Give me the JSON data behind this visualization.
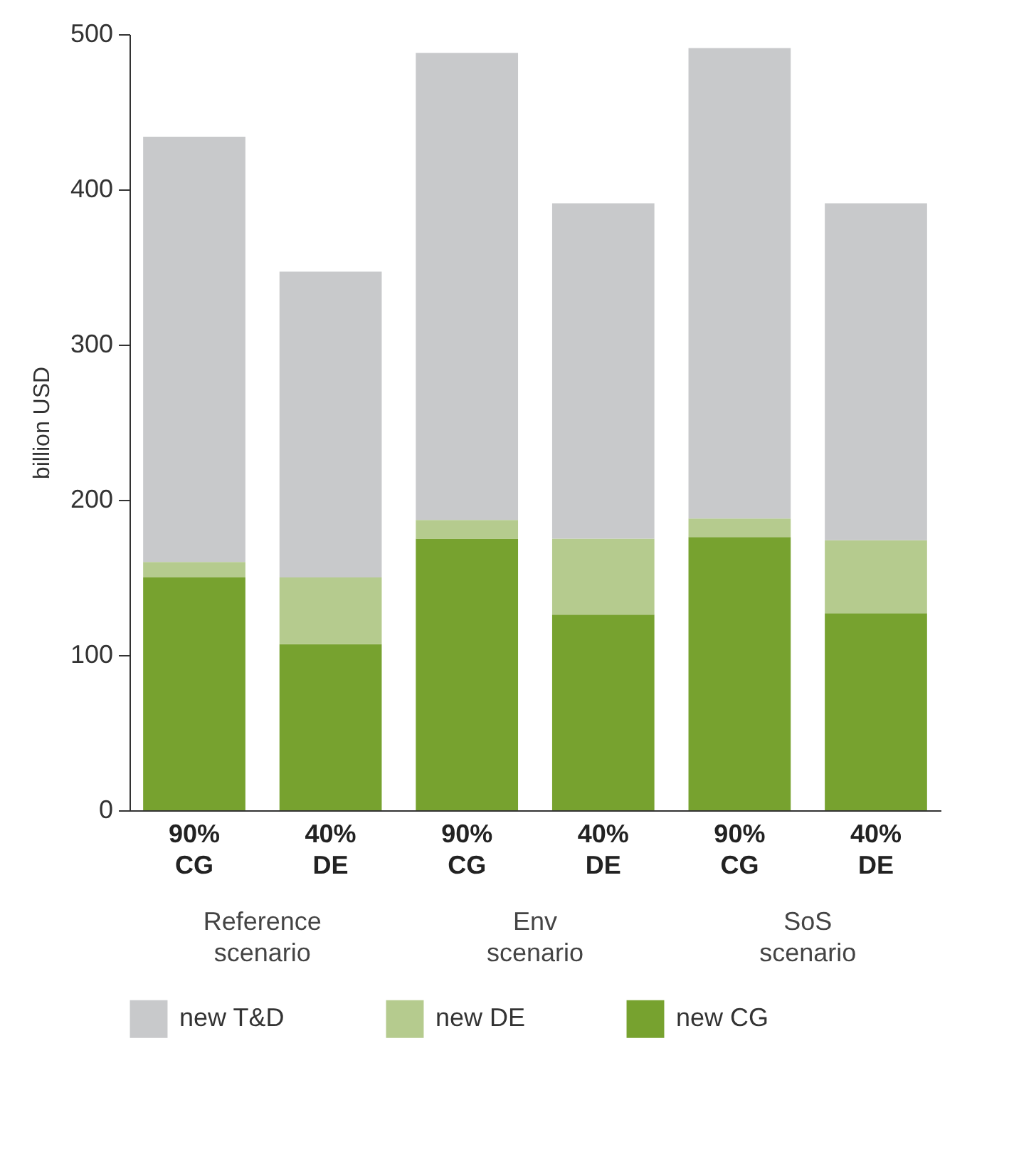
{
  "chart_data": {
    "type": "bar",
    "stacked": true,
    "ylabel": "billion USD",
    "categories": [
      "90%\nCG",
      "40%\nDE",
      "90%\nCG",
      "40%\nDE",
      "90%\nCG",
      "40%\nDE"
    ],
    "series": [
      {
        "name": "new CG",
        "color": "#77a22f",
        "values": [
          150,
          107,
          175,
          126,
          176,
          127
        ]
      },
      {
        "name": "new DE",
        "color": "#b5cb8e",
        "values": [
          10,
          43,
          12,
          49,
          12,
          47
        ]
      },
      {
        "name": "new T&D",
        "color": "#c8c9cb",
        "values": [
          274,
          197,
          301,
          216,
          303,
          217
        ]
      }
    ],
    "ylim": [
      0,
      500
    ],
    "yticks": [
      0,
      100,
      200,
      300,
      400,
      500
    ],
    "annotations": [
      "Reference\nscenario",
      "Env\nscenario",
      "SoS\nscenario"
    ],
    "grid": false,
    "legend": "bottom"
  }
}
